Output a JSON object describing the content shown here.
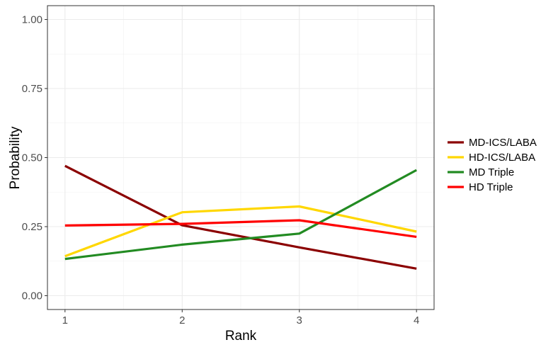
{
  "chart_data": {
    "type": "line",
    "title": "",
    "xlabel": "Rank",
    "ylabel": "Probability",
    "x": [
      1,
      2,
      3,
      4
    ],
    "x_tick_labels": [
      "1",
      "2",
      "3",
      "4"
    ],
    "y_tick_labels": [
      "0.00",
      "0.25",
      "0.50",
      "0.75",
      "1.00"
    ],
    "y_ticks": [
      0.0,
      0.25,
      0.5,
      0.75,
      1.0
    ],
    "xlim": [
      0.85,
      4.15
    ],
    "ylim": [
      -0.05,
      1.05
    ],
    "grid": true,
    "legend_position": "right",
    "series": [
      {
        "name": "MD-ICS/LABA",
        "color": "#8B0000",
        "values": [
          0.47,
          0.255,
          0.175,
          0.098
        ]
      },
      {
        "name": "HD-ICS/LABA",
        "color": "#FFD700",
        "values": [
          0.143,
          0.302,
          0.323,
          0.232
        ]
      },
      {
        "name": "MD Triple",
        "color": "#228B22",
        "values": [
          0.133,
          0.185,
          0.225,
          0.455
        ]
      },
      {
        "name": "HD Triple",
        "color": "#FF0000",
        "values": [
          0.254,
          0.26,
          0.273,
          0.213
        ]
      }
    ]
  }
}
